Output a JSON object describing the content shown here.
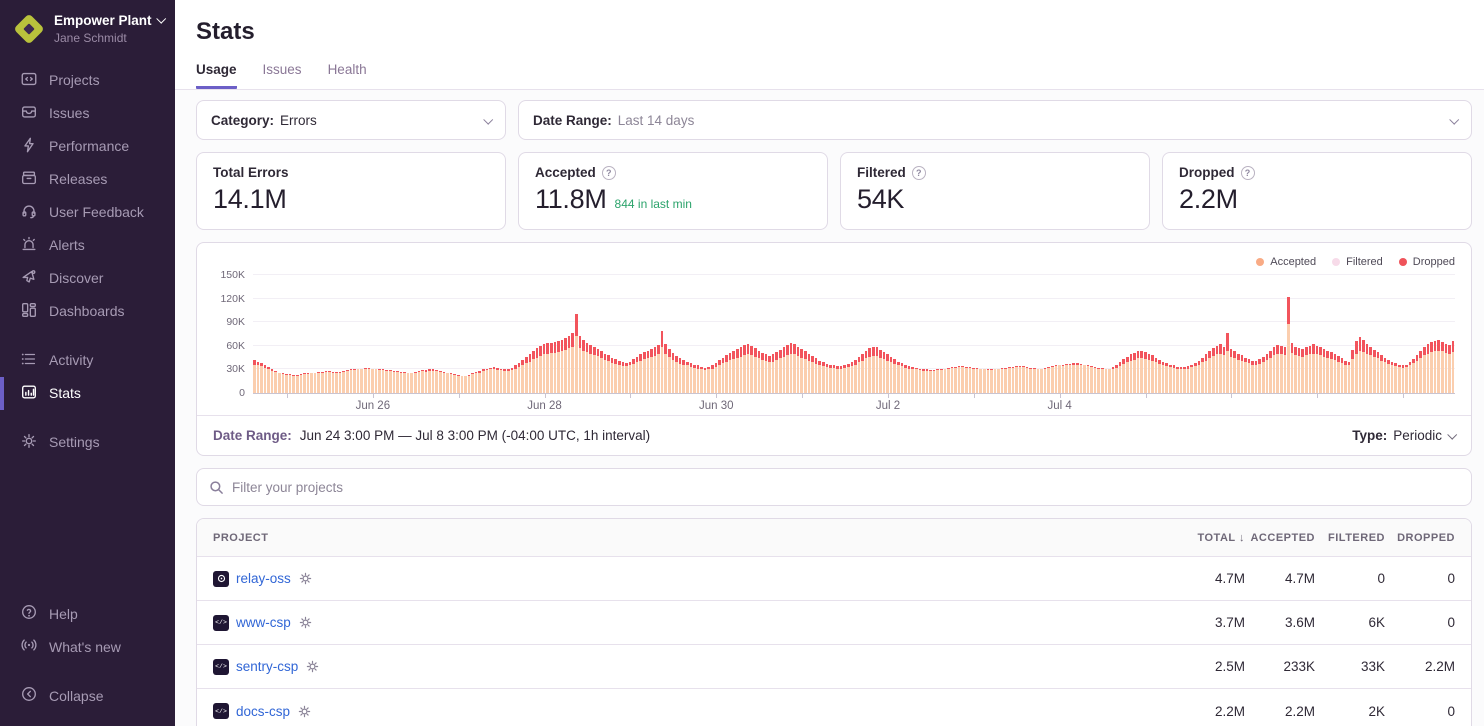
{
  "sidebar": {
    "org_name": "Empower Plant",
    "user_name": "Jane Schmidt",
    "nav_primary": [
      {
        "label": "Projects",
        "icon": "projects-icon"
      },
      {
        "label": "Issues",
        "icon": "issues-icon"
      },
      {
        "label": "Performance",
        "icon": "performance-icon"
      },
      {
        "label": "Releases",
        "icon": "releases-icon"
      },
      {
        "label": "User Feedback",
        "icon": "user-feedback-icon"
      },
      {
        "label": "Alerts",
        "icon": "alerts-icon"
      },
      {
        "label": "Discover",
        "icon": "discover-icon"
      },
      {
        "label": "Dashboards",
        "icon": "dashboards-icon"
      }
    ],
    "nav_secondary": [
      {
        "label": "Activity",
        "icon": "activity-icon",
        "active": false
      },
      {
        "label": "Stats",
        "icon": "stats-icon",
        "active": true
      }
    ],
    "nav_settings": [
      {
        "label": "Settings",
        "icon": "settings-icon",
        "active": false
      }
    ],
    "nav_footer": [
      {
        "label": "Help",
        "icon": "help-icon"
      },
      {
        "label": "What's new",
        "icon": "whats-new-icon"
      }
    ],
    "collapse_label": "Collapse"
  },
  "header": {
    "title": "Stats",
    "tabs": [
      {
        "label": "Usage",
        "active": true
      },
      {
        "label": "Issues",
        "active": false
      },
      {
        "label": "Health",
        "active": false
      }
    ]
  },
  "filters": {
    "category_label": "Category:",
    "category_value": "Errors",
    "date_range_label": "Date Range:",
    "date_range_value": "Last 14 days"
  },
  "cards": [
    {
      "label": "Total Errors",
      "value": "14.1M",
      "has_help": false,
      "sub": ""
    },
    {
      "label": "Accepted",
      "value": "11.8M",
      "has_help": true,
      "sub": "844 in last min"
    },
    {
      "label": "Filtered",
      "value": "54K",
      "has_help": true,
      "sub": ""
    },
    {
      "label": "Dropped",
      "value": "2.2M",
      "has_help": true,
      "sub": ""
    }
  ],
  "chart_data": {
    "type": "bar",
    "stacked": true,
    "interval": "1h",
    "note": "Hourly stacked bars over 14 days; accepted height = total - dropped; filtered negligible (~0). Values in thousands of events.",
    "ylim": [
      0,
      150000
    ],
    "y_tick_labels": [
      "0",
      "30K",
      "60K",
      "90K",
      "120K",
      "150K"
    ],
    "x_tick_labels": [
      "Jun 26",
      "Jun 28",
      "Jun 30",
      "Jul 2",
      "Jul 4"
    ],
    "x_tick_indices": [
      33,
      81,
      129,
      177,
      225
    ],
    "minor_tick_start": 9,
    "minor_tick_step": 24,
    "legend": [
      {
        "name": "Accepted",
        "color": "#f9ab85"
      },
      {
        "name": "Filtered",
        "color": "#f7dbe9"
      },
      {
        "name": "Dropped",
        "color": "#ef535a"
      }
    ],
    "totals_k": [
      42,
      40,
      38,
      35,
      33,
      30,
      28,
      26,
      25,
      24,
      24,
      23,
      23,
      24,
      25,
      25,
      26,
      26,
      27,
      27,
      28,
      28,
      27,
      27,
      27,
      28,
      29,
      30,
      30,
      31,
      31,
      32,
      32,
      31,
      31,
      30,
      30,
      29,
      29,
      28,
      28,
      27,
      27,
      26,
      26,
      27,
      28,
      29,
      29,
      30,
      30,
      29,
      28,
      27,
      26,
      25,
      24,
      23,
      22,
      22,
      23,
      25,
      27,
      28,
      30,
      31,
      32,
      33,
      32,
      31,
      30,
      30,
      32,
      35,
      38,
      42,
      46,
      50,
      54,
      57,
      60,
      62,
      63,
      64,
      65,
      66,
      68,
      70,
      73,
      76,
      100,
      73,
      68,
      64,
      61,
      58,
      56,
      53,
      50,
      48,
      45,
      43,
      41,
      39,
      38,
      40,
      43,
      46,
      49,
      52,
      54,
      56,
      58,
      61,
      79,
      62,
      56,
      51,
      47,
      44,
      42,
      40,
      38,
      36,
      35,
      33,
      32,
      33,
      35,
      38,
      42,
      45,
      48,
      51,
      53,
      56,
      58,
      61,
      62,
      60,
      57,
      54,
      51,
      49,
      47,
      49,
      52,
      55,
      58,
      61,
      63,
      62,
      59,
      56,
      53,
      50,
      47,
      44,
      41,
      39,
      37,
      36,
      35,
      34,
      34,
      35,
      37,
      39,
      42,
      46,
      50,
      54,
      57,
      59,
      58,
      55,
      52,
      49,
      46,
      43,
      40,
      38,
      36,
      34,
      33,
      32,
      31,
      30,
      30,
      29,
      29,
      30,
      30,
      31,
      32,
      33,
      33,
      34,
      34,
      33,
      33,
      32,
      32,
      31,
      31,
      30,
      30,
      31,
      31,
      32,
      32,
      33,
      33,
      34,
      34,
      34,
      33,
      32,
      32,
      31,
      31,
      32,
      33,
      34,
      35,
      36,
      36,
      37,
      37,
      38,
      38,
      37,
      36,
      35,
      34,
      33,
      32,
      32,
      31,
      31,
      33,
      36,
      39,
      43,
      46,
      49,
      51,
      53,
      53,
      52,
      50,
      48,
      45,
      42,
      40,
      38,
      36,
      35,
      33,
      33,
      33,
      34,
      36,
      38,
      41,
      45,
      49,
      53,
      57,
      60,
      62,
      58,
      76,
      56,
      53,
      50,
      48,
      45,
      43,
      41,
      41,
      43,
      46,
      50,
      54,
      58,
      61,
      60,
      58,
      122,
      63,
      59,
      57,
      56,
      58,
      60,
      62,
      60,
      58,
      56,
      54,
      52,
      50,
      47,
      44,
      41,
      40,
      55,
      66,
      71,
      68,
      62,
      58,
      55,
      52,
      48,
      45,
      42,
      40,
      38,
      36,
      35,
      36,
      39,
      43,
      48,
      54,
      59,
      62,
      65,
      66,
      68,
      65,
      62,
      61,
      66
    ],
    "dropped_k": [
      6,
      5,
      4,
      3,
      2,
      2,
      1,
      1,
      1,
      1,
      1,
      1,
      1,
      1,
      1,
      1,
      1,
      1,
      1,
      1,
      1,
      1,
      1,
      1,
      1,
      1,
      1,
      1,
      1,
      1,
      1,
      1,
      1,
      1,
      1,
      1,
      1,
      1,
      1,
      1,
      1,
      1,
      1,
      1,
      1,
      1,
      1,
      1,
      2,
      2,
      2,
      1,
      1,
      1,
      1,
      1,
      1,
      1,
      1,
      1,
      1,
      1,
      2,
      2,
      2,
      2,
      2,
      3,
      3,
      2,
      2,
      2,
      3,
      4,
      5,
      6,
      8,
      10,
      11,
      12,
      13,
      13,
      13,
      13,
      14,
      14,
      15,
      15,
      16,
      18,
      27,
      16,
      14,
      12,
      11,
      10,
      9,
      8,
      8,
      7,
      7,
      6,
      5,
      5,
      4,
      5,
      6,
      7,
      8,
      9,
      10,
      10,
      11,
      12,
      20,
      12,
      10,
      9,
      8,
      7,
      6,
      5,
      5,
      4,
      4,
      3,
      3,
      3,
      4,
      5,
      6,
      7,
      8,
      9,
      10,
      11,
      12,
      13,
      13,
      12,
      11,
      10,
      9,
      8,
      8,
      9,
      10,
      11,
      12,
      13,
      14,
      13,
      12,
      11,
      10,
      9,
      8,
      7,
      6,
      5,
      4,
      4,
      3,
      3,
      3,
      3,
      4,
      5,
      6,
      7,
      9,
      10,
      11,
      12,
      11,
      10,
      9,
      8,
      7,
      6,
      5,
      4,
      4,
      3,
      3,
      2,
      2,
      2,
      2,
      1,
      1,
      1,
      1,
      1,
      1,
      1,
      1,
      1,
      1,
      1,
      1,
      1,
      1,
      1,
      1,
      1,
      1,
      1,
      1,
      1,
      1,
      1,
      1,
      1,
      1,
      1,
      1,
      1,
      1,
      1,
      1,
      1,
      1,
      1,
      1,
      1,
      2,
      2,
      2,
      2,
      2,
      2,
      1,
      1,
      1,
      1,
      1,
      1,
      1,
      1,
      3,
      4,
      5,
      6,
      7,
      8,
      9,
      9,
      9,
      9,
      8,
      7,
      6,
      5,
      4,
      4,
      3,
      3,
      2,
      2,
      2,
      3,
      3,
      4,
      5,
      6,
      8,
      9,
      10,
      11,
      12,
      10,
      22,
      10,
      9,
      8,
      7,
      6,
      5,
      5,
      5,
      6,
      7,
      8,
      9,
      10,
      11,
      11,
      10,
      34,
      12,
      11,
      10,
      10,
      10,
      11,
      12,
      11,
      10,
      10,
      9,
      9,
      8,
      7,
      6,
      5,
      5,
      12,
      16,
      18,
      16,
      12,
      10,
      9,
      8,
      7,
      6,
      5,
      4,
      4,
      3,
      3,
      3,
      4,
      5,
      7,
      9,
      11,
      12,
      13,
      13,
      14,
      12,
      11,
      11,
      14
    ],
    "bar_colors": {
      "accepted": "#fbceae",
      "dropped": "#f2545c"
    }
  },
  "chart_footer": {
    "label": "Date Range:",
    "value": "Jun 24 3:00 PM — Jul 8 3:00 PM (-04:00 UTC, 1h interval)",
    "type_label": "Type:",
    "type_value": "Periodic"
  },
  "search": {
    "placeholder": "Filter your projects"
  },
  "table": {
    "columns": [
      "PROJECT",
      "TOTAL",
      "ACCEPTED",
      "FILTERED",
      "DROPPED"
    ],
    "sorted_column": "TOTAL",
    "rows": [
      {
        "icon": "relay-platform-icon",
        "icon_glyph": "relay",
        "name": "relay-oss",
        "total": "4.7M",
        "accepted": "4.7M",
        "filtered": "0",
        "dropped": "0"
      },
      {
        "icon": "csp-platform-icon",
        "icon_glyph": "csp",
        "name": "www-csp",
        "total": "3.7M",
        "accepted": "3.6M",
        "filtered": "6K",
        "dropped": "0"
      },
      {
        "icon": "csp-platform-icon",
        "icon_glyph": "csp",
        "name": "sentry-csp",
        "total": "2.5M",
        "accepted": "233K",
        "filtered": "33K",
        "dropped": "2.2M"
      },
      {
        "icon": "csp-platform-icon",
        "icon_glyph": "csp",
        "name": "docs-csp",
        "total": "2.2M",
        "accepted": "2.2M",
        "filtered": "2K",
        "dropped": "0"
      }
    ]
  },
  "colors": {
    "sidebar_bg": "#2b1d38",
    "accent_purple": "#6c5fc7",
    "link_blue": "#3166d6",
    "success_green": "#2ba36b",
    "logo_lime": "#b9c23c"
  }
}
